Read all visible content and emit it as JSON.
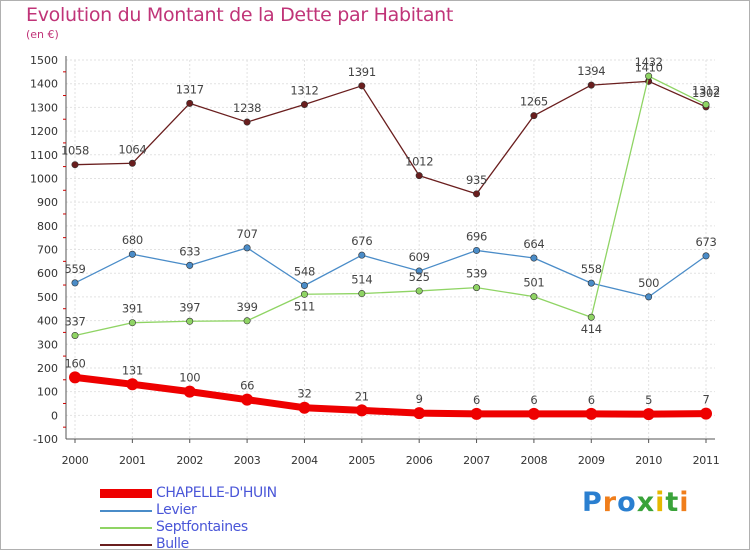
{
  "title": "Evolution du Montant de la Dette par Habitant",
  "subtitle": "(en €)",
  "logo": {
    "text": "Proxiti",
    "colors": [
      "#2a7fd0",
      "#f07e1b",
      "#2a7fd0",
      "#3aa33a",
      "#e6b800",
      "#3aa33a",
      "#f07e1b"
    ]
  },
  "chart_data": {
    "type": "line",
    "x": [
      "2000",
      "2001",
      "2002",
      "2003",
      "2004",
      "2005",
      "2006",
      "2007",
      "2008",
      "2009",
      "2010",
      "2011"
    ],
    "ylim": [
      -100,
      1500
    ],
    "yticks": [
      "-100",
      "0",
      "100",
      "200",
      "300",
      "400",
      "500",
      "600",
      "700",
      "800",
      "900",
      "1000",
      "1100",
      "1200",
      "1300",
      "1400",
      "1500"
    ],
    "grid": true,
    "legend_position": "bottom-left",
    "series": [
      {
        "name": "CHAPELLE-D'HUIN",
        "color": "#ee0000",
        "values": [
          160,
          131,
          100,
          66,
          32,
          21,
          9,
          6,
          6,
          6,
          5,
          7
        ],
        "labels": [
          "160",
          "131",
          "100",
          "66",
          "32",
          "21",
          "9",
          "6",
          "6",
          "6",
          "5",
          "7"
        ]
      },
      {
        "name": "Levier",
        "color": "#4a8cc8",
        "values": [
          559,
          680,
          633,
          707,
          548,
          676,
          609,
          696,
          664,
          558,
          500,
          673
        ],
        "labels": [
          "559",
          "680",
          "633",
          "707",
          "548",
          "676",
          "609",
          "696",
          "664",
          "558",
          "500",
          "673"
        ]
      },
      {
        "name": "Septfontaines",
        "color": "#8fd464",
        "values": [
          337,
          391,
          397,
          399,
          511,
          514,
          525,
          539,
          501,
          414,
          1432,
          1312
        ],
        "labels": [
          "337",
          "391",
          "397",
          "399",
          "511",
          "514",
          "525",
          "539",
          "501",
          "414",
          "1432",
          "1312"
        ]
      },
      {
        "name": "Bulle",
        "color": "#6a1e1e",
        "values": [
          1058,
          1064,
          1317,
          1238,
          1312,
          1391,
          1012,
          935,
          1265,
          1394,
          1410,
          1302
        ],
        "labels": [
          "1058",
          "1064",
          "1317",
          "1238",
          "1312",
          "1391",
          "1012",
          "935",
          "1265",
          "1394",
          "1410",
          "1302"
        ]
      }
    ]
  }
}
